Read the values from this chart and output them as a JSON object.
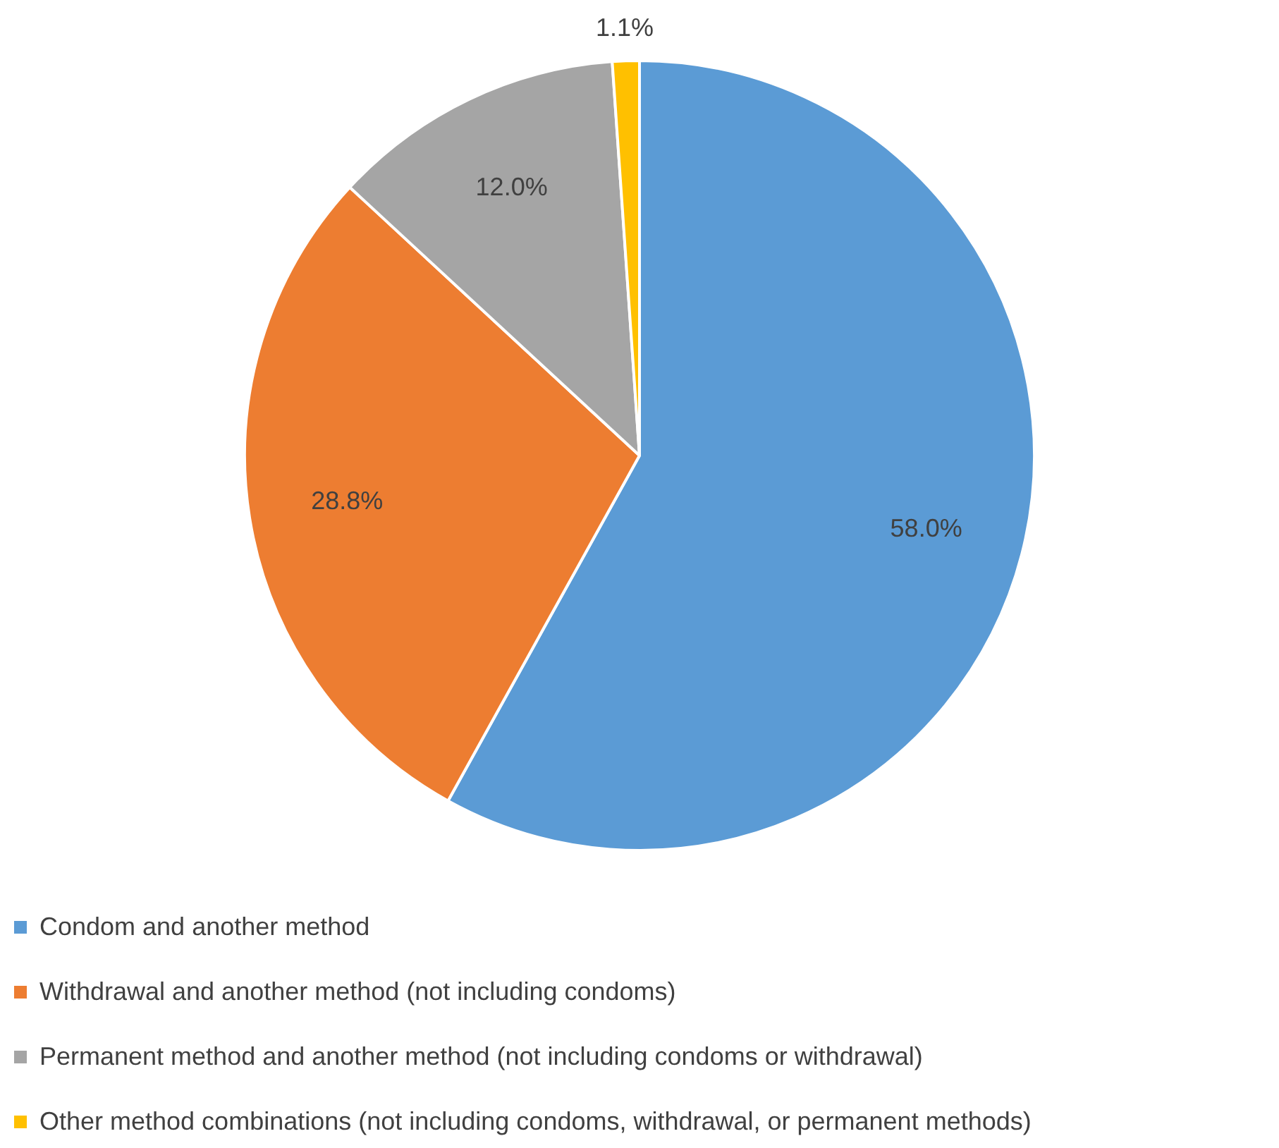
{
  "chart_data": {
    "type": "pie",
    "categories": [
      "Condom and another method",
      "Withdrawal and another method (not including condoms)",
      "Permanent method and another method (not including condoms or withdrawal)",
      "Other method combinations (not including condoms, withdrawal, or permanent methods)"
    ],
    "values": [
      58.0,
      28.8,
      12.0,
      1.1
    ],
    "colors": [
      "#5b9bd5",
      "#ed7d31",
      "#a5a5a5",
      "#ffc000"
    ],
    "value_labels": [
      "58.0%",
      "28.8%",
      "12.0%",
      "1.1%"
    ],
    "legend": "bottom"
  }
}
